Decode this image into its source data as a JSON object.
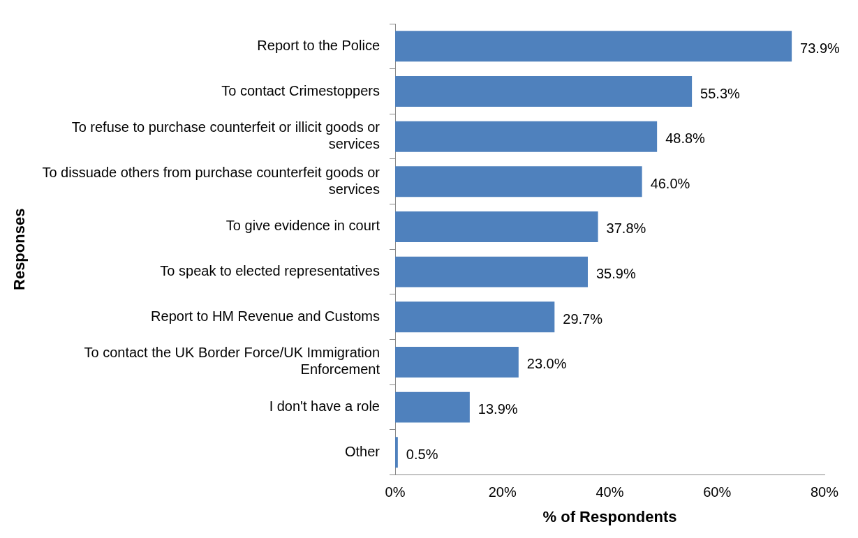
{
  "chart_data": {
    "type": "bar",
    "orientation": "horizontal",
    "xlabel": "% of Respondents",
    "ylabel": "Responses",
    "categories": [
      "Report to the Police",
      "To contact Crimestoppers",
      "To refuse to purchase counterfeit or illicit goods or services",
      "To dissuade others from purchase counterfeit goods or services",
      "To give evidence in court",
      "To speak to elected representatives",
      "Report to HM Revenue and Customs",
      "To contact the UK Border Force/UK Immigration Enforcement",
      "I don't have a role",
      "Other"
    ],
    "values": [
      73.9,
      55.3,
      48.8,
      46.0,
      37.8,
      35.9,
      29.7,
      23.0,
      13.9,
      0.5
    ],
    "value_labels": [
      "73.9%",
      "55.3%",
      "48.8%",
      "46.0%",
      "37.8%",
      "35.9%",
      "29.7%",
      "23.0%",
      "13.9%",
      "0.5%"
    ],
    "color": "#4f81bd",
    "xlim": [
      0,
      80
    ],
    "xticks": [
      {
        "value": 0,
        "label": "0%"
      },
      {
        "value": 20,
        "label": "20%"
      },
      {
        "value": 40,
        "label": "40%"
      },
      {
        "value": 60,
        "label": "60%"
      },
      {
        "value": 80,
        "label": "80%"
      }
    ],
    "grid": false,
    "legend": false
  }
}
